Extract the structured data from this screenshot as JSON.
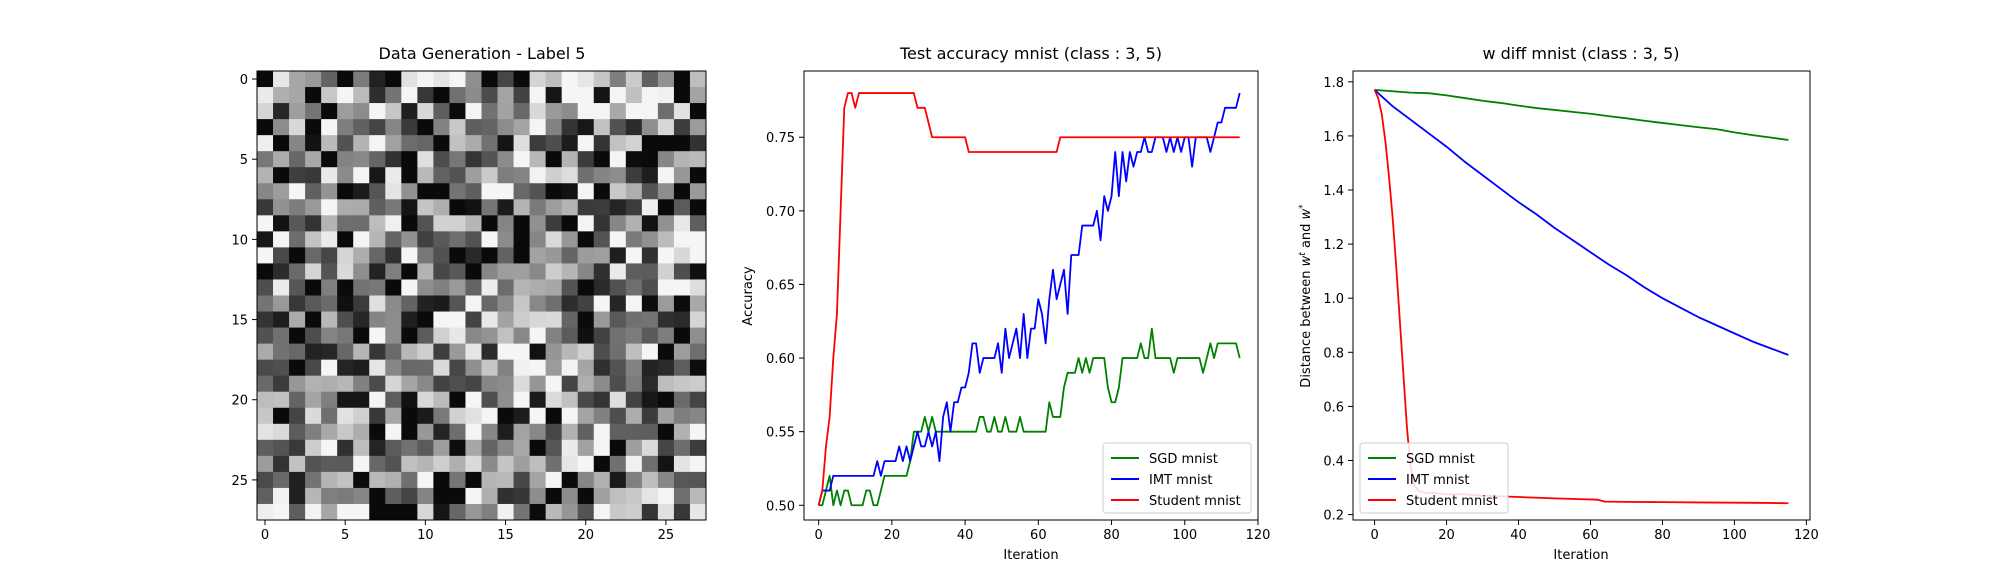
{
  "chart_data": [
    {
      "type": "heatmap",
      "title": "Data Generation - Label 5",
      "xlabel": "",
      "ylabel": "",
      "xticks": [
        0,
        5,
        10,
        15,
        20,
        25
      ],
      "yticks": [
        0,
        5,
        10,
        15,
        20,
        25
      ],
      "grid_size": [
        28,
        28
      ],
      "colormap": "gray",
      "value_range": [
        0,
        1
      ],
      "seed": 1234,
      "grid": false
    },
    {
      "type": "line",
      "title": "Test accuracy mnist (class : 3, 5)",
      "xlabel": "Iteration",
      "ylabel": "Accuracy",
      "xlim": [
        -4,
        120
      ],
      "ylim": [
        0.49,
        0.795
      ],
      "xticks": [
        0,
        20,
        40,
        60,
        80,
        100,
        120
      ],
      "yticks": [
        "0.50",
        "0.55",
        "0.60",
        "0.65",
        "0.70",
        "0.75"
      ],
      "legend": "bottom-right",
      "grid": false,
      "series": [
        {
          "name": "SGD mnist",
          "color": "#008000",
          "x": [
            0,
            1,
            2,
            3,
            4,
            5,
            6,
            7,
            8,
            9,
            10,
            11,
            12,
            13,
            14,
            15,
            16,
            17,
            18,
            19,
            20,
            21,
            22,
            23,
            24,
            25,
            26,
            27,
            28,
            29,
            30,
            31,
            32,
            33,
            34,
            35,
            36,
            37,
            38,
            39,
            40,
            41,
            42,
            43,
            44,
            45,
            46,
            47,
            48,
            49,
            50,
            51,
            52,
            53,
            54,
            55,
            56,
            57,
            58,
            59,
            60,
            61,
            62,
            63,
            64,
            65,
            66,
            67,
            68,
            69,
            70,
            71,
            72,
            73,
            74,
            75,
            76,
            77,
            78,
            79,
            80,
            81,
            82,
            83,
            84,
            85,
            86,
            87,
            88,
            89,
            90,
            91,
            92,
            93,
            94,
            95,
            96,
            97,
            98,
            99,
            100,
            101,
            102,
            103,
            104,
            105,
            106,
            107,
            108,
            109,
            110,
            111,
            112,
            113,
            114,
            115
          ],
          "values": [
            0.5,
            0.5,
            0.51,
            0.52,
            0.5,
            0.51,
            0.5,
            0.51,
            0.51,
            0.5,
            0.5,
            0.5,
            0.5,
            0.51,
            0.51,
            0.5,
            0.5,
            0.51,
            0.52,
            0.52,
            0.52,
            0.52,
            0.52,
            0.52,
            0.52,
            0.53,
            0.55,
            0.55,
            0.55,
            0.56,
            0.55,
            0.56,
            0.55,
            0.55,
            0.55,
            0.55,
            0.55,
            0.55,
            0.55,
            0.55,
            0.55,
            0.55,
            0.55,
            0.55,
            0.56,
            0.56,
            0.55,
            0.55,
            0.56,
            0.55,
            0.55,
            0.56,
            0.55,
            0.55,
            0.55,
            0.56,
            0.55,
            0.55,
            0.55,
            0.55,
            0.55,
            0.55,
            0.55,
            0.57,
            0.56,
            0.56,
            0.56,
            0.58,
            0.59,
            0.59,
            0.59,
            0.6,
            0.59,
            0.6,
            0.59,
            0.6,
            0.6,
            0.6,
            0.6,
            0.58,
            0.57,
            0.57,
            0.58,
            0.6,
            0.6,
            0.6,
            0.6,
            0.6,
            0.61,
            0.6,
            0.6,
            0.62,
            0.6,
            0.6,
            0.6,
            0.6,
            0.6,
            0.59,
            0.6,
            0.6,
            0.6,
            0.6,
            0.6,
            0.6,
            0.6,
            0.59,
            0.6,
            0.61,
            0.6,
            0.61,
            0.61,
            0.61,
            0.61,
            0.61,
            0.61,
            0.6
          ]
        },
        {
          "name": "IMT mnist",
          "color": "#0000ff",
          "x": [
            0,
            1,
            2,
            3,
            4,
            5,
            6,
            7,
            8,
            9,
            10,
            11,
            12,
            13,
            14,
            15,
            16,
            17,
            18,
            19,
            20,
            21,
            22,
            23,
            24,
            25,
            26,
            27,
            28,
            29,
            30,
            31,
            32,
            33,
            34,
            35,
            36,
            37,
            38,
            39,
            40,
            41,
            42,
            43,
            44,
            45,
            46,
            47,
            48,
            49,
            50,
            51,
            52,
            53,
            54,
            55,
            56,
            57,
            58,
            59,
            60,
            61,
            62,
            63,
            64,
            65,
            66,
            67,
            68,
            69,
            70,
            71,
            72,
            73,
            74,
            75,
            76,
            77,
            78,
            79,
            80,
            81,
            82,
            83,
            84,
            85,
            86,
            87,
            88,
            89,
            90,
            91,
            92,
            93,
            94,
            95,
            96,
            97,
            98,
            99,
            100,
            101,
            102,
            103,
            104,
            105,
            106,
            107,
            108,
            109,
            110,
            111,
            112,
            113,
            114,
            115
          ],
          "values": [
            0.5,
            0.51,
            0.51,
            0.51,
            0.52,
            0.52,
            0.52,
            0.52,
            0.52,
            0.52,
            0.52,
            0.52,
            0.52,
            0.52,
            0.52,
            0.52,
            0.53,
            0.52,
            0.53,
            0.53,
            0.53,
            0.53,
            0.54,
            0.53,
            0.54,
            0.53,
            0.54,
            0.55,
            0.54,
            0.54,
            0.55,
            0.54,
            0.55,
            0.53,
            0.56,
            0.57,
            0.55,
            0.57,
            0.57,
            0.58,
            0.58,
            0.59,
            0.61,
            0.61,
            0.59,
            0.6,
            0.6,
            0.6,
            0.6,
            0.61,
            0.59,
            0.62,
            0.6,
            0.61,
            0.62,
            0.6,
            0.63,
            0.6,
            0.62,
            0.62,
            0.64,
            0.63,
            0.61,
            0.64,
            0.66,
            0.64,
            0.65,
            0.66,
            0.63,
            0.67,
            0.67,
            0.67,
            0.69,
            0.69,
            0.69,
            0.69,
            0.7,
            0.68,
            0.71,
            0.7,
            0.71,
            0.74,
            0.71,
            0.74,
            0.72,
            0.74,
            0.73,
            0.74,
            0.74,
            0.75,
            0.74,
            0.74,
            0.75,
            0.75,
            0.75,
            0.74,
            0.75,
            0.74,
            0.75,
            0.74,
            0.75,
            0.75,
            0.73,
            0.75,
            0.75,
            0.75,
            0.75,
            0.74,
            0.75,
            0.76,
            0.76,
            0.77,
            0.77,
            0.77,
            0.77,
            0.78
          ]
        },
        {
          "name": "Student mnist",
          "color": "#ff0000",
          "x": [
            0,
            1,
            2,
            3,
            4,
            5,
            6,
            7,
            8,
            9,
            10,
            11,
            12,
            13,
            14,
            15,
            16,
            17,
            18,
            19,
            20,
            21,
            22,
            23,
            24,
            25,
            26,
            27,
            28,
            29,
            30,
            31,
            32,
            33,
            34,
            35,
            36,
            37,
            38,
            39,
            40,
            41,
            42,
            43,
            44,
            45,
            46,
            47,
            48,
            49,
            50,
            51,
            52,
            53,
            54,
            55,
            56,
            57,
            58,
            59,
            60,
            61,
            62,
            63,
            64,
            65,
            66,
            67,
            68,
            69,
            70,
            71,
            72,
            73,
            74,
            75,
            76,
            77,
            78,
            79,
            80,
            81,
            82,
            83,
            84,
            85,
            86,
            87,
            88,
            89,
            90,
            91,
            92,
            93,
            94,
            95,
            96,
            97,
            98,
            99,
            100,
            101,
            102,
            103,
            104,
            105,
            106,
            107,
            108,
            109,
            110,
            111,
            112,
            113,
            114,
            115
          ],
          "values": [
            0.5,
            0.51,
            0.54,
            0.56,
            0.6,
            0.63,
            0.7,
            0.77,
            0.78,
            0.78,
            0.77,
            0.78,
            0.78,
            0.78,
            0.78,
            0.78,
            0.78,
            0.78,
            0.78,
            0.78,
            0.78,
            0.78,
            0.78,
            0.78,
            0.78,
            0.78,
            0.78,
            0.77,
            0.77,
            0.77,
            0.76,
            0.75,
            0.75,
            0.75,
            0.75,
            0.75,
            0.75,
            0.75,
            0.75,
            0.75,
            0.75,
            0.74,
            0.74,
            0.74,
            0.74,
            0.74,
            0.74,
            0.74,
            0.74,
            0.74,
            0.74,
            0.74,
            0.74,
            0.74,
            0.74,
            0.74,
            0.74,
            0.74,
            0.74,
            0.74,
            0.74,
            0.74,
            0.74,
            0.74,
            0.74,
            0.74,
            0.75,
            0.75,
            0.75,
            0.75,
            0.75,
            0.75,
            0.75,
            0.75,
            0.75,
            0.75,
            0.75,
            0.75,
            0.75,
            0.75,
            0.75,
            0.75,
            0.75,
            0.75,
            0.75,
            0.75,
            0.75,
            0.75,
            0.75,
            0.75,
            0.75,
            0.75,
            0.75,
            0.75,
            0.75,
            0.75,
            0.75,
            0.75,
            0.75,
            0.75,
            0.75,
            0.75,
            0.75,
            0.75,
            0.75,
            0.75,
            0.75,
            0.75,
            0.75,
            0.75,
            0.75,
            0.75,
            0.75,
            0.75,
            0.75,
            0.75
          ]
        }
      ]
    },
    {
      "type": "line",
      "title": "w diff mnist (class : 3, 5)",
      "xlabel": "Iteration",
      "ylabel": "Distance between w^t and w^*",
      "ylabel_main": "Distance between ",
      "ylabel_w1": "w",
      "ylabel_sup1": "t",
      "ylabel_and": " and ",
      "ylabel_w2": "w",
      "ylabel_sup2": "*",
      "xlim": [
        -6,
        121
      ],
      "ylim": [
        0.18,
        1.84
      ],
      "xticks": [
        0,
        20,
        40,
        60,
        80,
        100,
        120
      ],
      "yticks": [
        "0.2",
        "0.4",
        "0.6",
        "0.8",
        "1.0",
        "1.2",
        "1.4",
        "1.6",
        "1.8"
      ],
      "legend": "bottom-left",
      "grid": false,
      "series": [
        {
          "name": "SGD mnist",
          "color": "#008000",
          "x": [
            0,
            5,
            10,
            15,
            20,
            25,
            30,
            35,
            40,
            45,
            50,
            55,
            60,
            65,
            70,
            75,
            80,
            85,
            90,
            95,
            100,
            105,
            110,
            115
          ],
          "values": [
            1.77,
            1.765,
            1.76,
            1.758,
            1.75,
            1.74,
            1.73,
            1.722,
            1.712,
            1.703,
            1.696,
            1.689,
            1.682,
            1.673,
            1.665,
            1.656,
            1.648,
            1.64,
            1.632,
            1.625,
            1.613,
            1.603,
            1.594,
            1.585
          ]
        },
        {
          "name": "IMT mnist",
          "color": "#0000ff",
          "x": [
            0,
            5,
            10,
            15,
            20,
            25,
            30,
            35,
            40,
            45,
            50,
            55,
            60,
            65,
            70,
            75,
            80,
            85,
            90,
            95,
            100,
            105,
            110,
            115
          ],
          "values": [
            1.77,
            1.71,
            1.66,
            1.61,
            1.56,
            1.505,
            1.455,
            1.405,
            1.355,
            1.31,
            1.26,
            1.215,
            1.17,
            1.125,
            1.085,
            1.04,
            1.0,
            0.965,
            0.93,
            0.9,
            0.87,
            0.84,
            0.815,
            0.79
          ]
        },
        {
          "name": "Student mnist",
          "color": "#ff0000",
          "x": [
            0,
            1,
            2,
            3,
            4,
            5,
            6,
            7,
            8,
            9,
            10,
            11,
            12,
            14,
            16,
            20,
            25,
            30,
            40,
            50,
            62,
            64,
            70,
            80,
            90,
            100,
            110,
            115
          ],
          "values": [
            1.77,
            1.74,
            1.68,
            1.58,
            1.45,
            1.3,
            1.12,
            0.92,
            0.72,
            0.52,
            0.38,
            0.31,
            0.29,
            0.28,
            0.28,
            0.275,
            0.275,
            0.27,
            0.265,
            0.26,
            0.255,
            0.248,
            0.247,
            0.246,
            0.245,
            0.244,
            0.243,
            0.242
          ]
        }
      ]
    }
  ]
}
